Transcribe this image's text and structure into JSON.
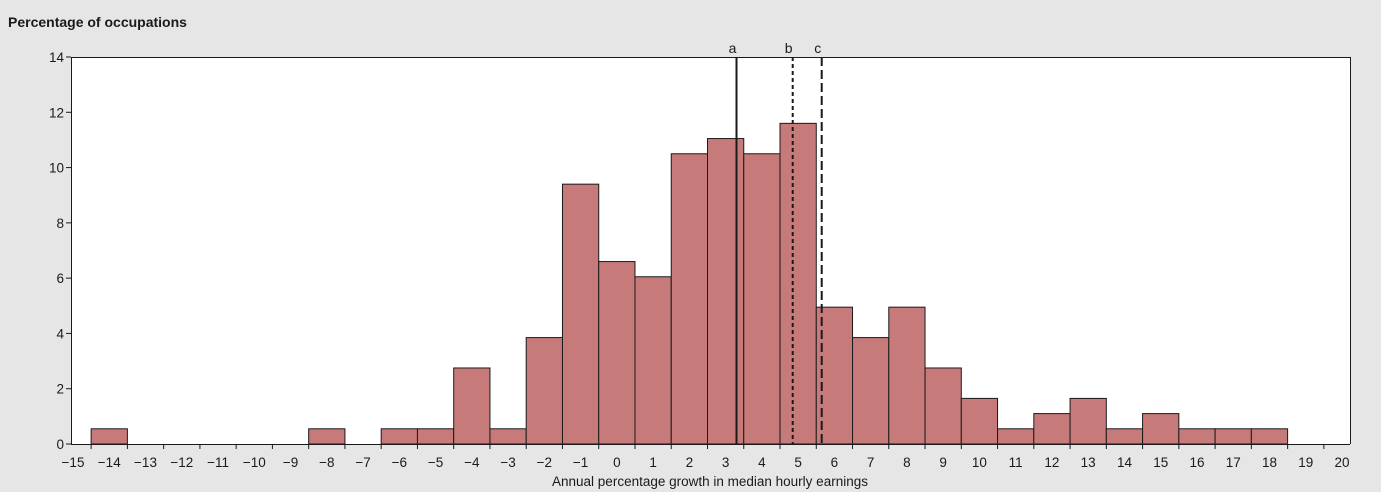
{
  "chart_data": {
    "type": "bar",
    "subtype": "histogram",
    "ylabel": "Percentage of occupations",
    "xlabel": "Annual percentage growth in median hourly earnings",
    "xlim": [
      -15,
      20
    ],
    "ylim": [
      0,
      14
    ],
    "x_ticks": [
      "−15",
      "−14",
      "−13",
      "−12",
      "−11",
      "−10",
      "−9",
      "−8",
      "−7",
      "−6",
      "−5",
      "−4",
      "−3",
      "−2",
      "−1",
      "0",
      "1",
      "2",
      "3",
      "4",
      "5",
      "6",
      "7",
      "8",
      "9",
      "10",
      "11",
      "12",
      "13",
      "14",
      "15",
      "16",
      "17",
      "18",
      "19",
      "20"
    ],
    "y_ticks": [
      0,
      2,
      4,
      6,
      8,
      10,
      12,
      14
    ],
    "bins": [
      {
        "x": -14,
        "value": 0.55
      },
      {
        "x": -8,
        "value": 0.55
      },
      {
        "x": -6,
        "value": 0.55
      },
      {
        "x": -5,
        "value": 0.55
      },
      {
        "x": -4,
        "value": 2.75
      },
      {
        "x": -3,
        "value": 0.55
      },
      {
        "x": -2,
        "value": 3.85
      },
      {
        "x": -1,
        "value": 9.4
      },
      {
        "x": 0,
        "value": 6.6
      },
      {
        "x": 1,
        "value": 6.05
      },
      {
        "x": 2,
        "value": 10.5
      },
      {
        "x": 3,
        "value": 11.05
      },
      {
        "x": 4,
        "value": 10.5
      },
      {
        "x": 5,
        "value": 11.6
      },
      {
        "x": 6,
        "value": 4.95
      },
      {
        "x": 7,
        "value": 3.85
      },
      {
        "x": 8,
        "value": 4.95
      },
      {
        "x": 9,
        "value": 2.75
      },
      {
        "x": 10,
        "value": 1.65
      },
      {
        "x": 11,
        "value": 0.55
      },
      {
        "x": 12,
        "value": 1.1
      },
      {
        "x": 13,
        "value": 1.65
      },
      {
        "x": 14,
        "value": 0.55
      },
      {
        "x": 15,
        "value": 1.1
      },
      {
        "x": 16,
        "value": 0.55
      },
      {
        "x": 17,
        "value": 0.55
      },
      {
        "x": 18,
        "value": 0.55
      }
    ],
    "markers": [
      {
        "label": "a",
        "x": 3.3,
        "style": "solid"
      },
      {
        "label": "b",
        "x": 4.85,
        "style": "dotted"
      },
      {
        "label": "c",
        "x": 5.65,
        "style": "dashed"
      }
    ],
    "colors": {
      "bar_fill": "#c77a7a",
      "bar_stroke": "#1a1a1a",
      "plot_background": "#ffffff",
      "page_background": "#e6e6e6",
      "text": "#1a1a1a"
    },
    "grid": false
  }
}
